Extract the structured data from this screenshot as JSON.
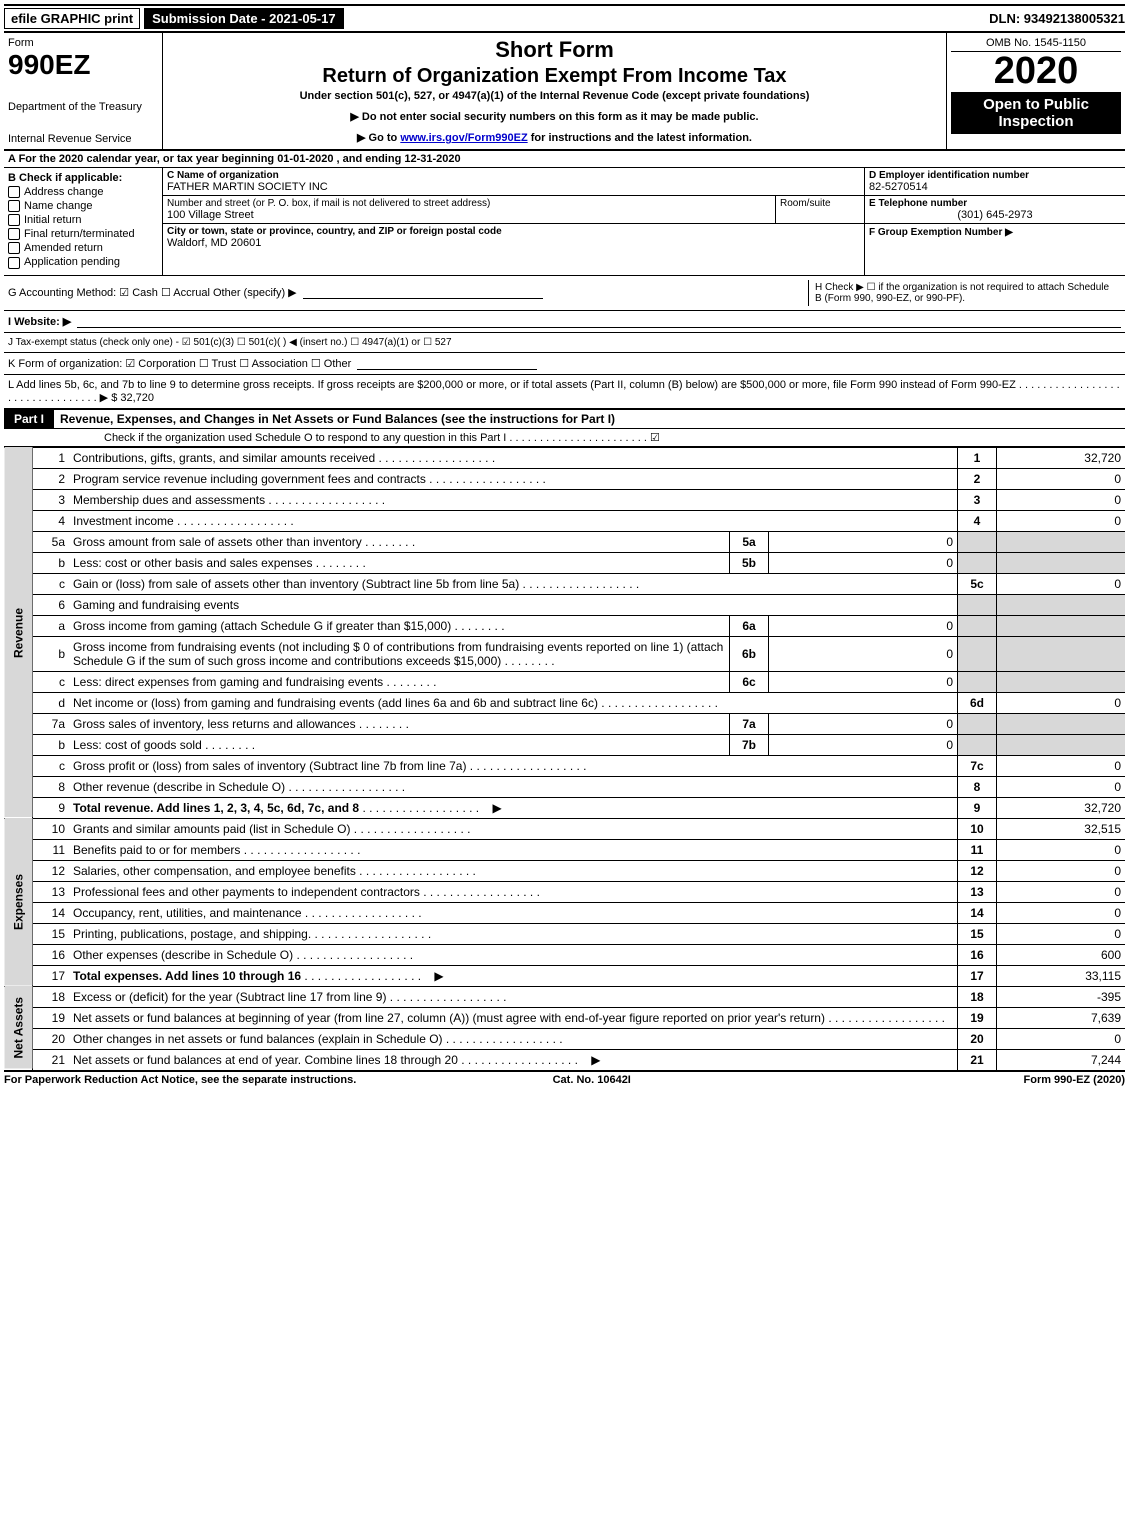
{
  "topbar": {
    "efile": "efile GRAPHIC print",
    "submission": "Submission Date - 2021-05-17",
    "dln": "DLN: 93492138005321"
  },
  "header": {
    "form_word": "Form",
    "form_num": "990EZ",
    "dept": "Department of the Treasury",
    "irs": "Internal Revenue Service",
    "title1": "Short Form",
    "title2": "Return of Organization Exempt From Income Tax",
    "subtitle": "Under section 501(c), 527, or 4947(a)(1) of the Internal Revenue Code (except private foundations)",
    "note1": "▶ Do not enter social security numbers on this form as it may be made public.",
    "note2_pre": "▶ Go to ",
    "note2_link": "www.irs.gov/Form990EZ",
    "note2_post": " for instructions and the latest information.",
    "omb": "OMB No. 1545-1150",
    "year": "2020",
    "open": "Open to Public Inspection"
  },
  "lineA": "A For the 2020 calendar year, or tax year beginning 01-01-2020 , and ending 12-31-2020",
  "boxB": {
    "title": "B  Check if applicable:",
    "items": [
      "Address change",
      "Name change",
      "Initial return",
      "Final return/terminated",
      "Amended return",
      "Application pending"
    ]
  },
  "boxC": {
    "name_label": "C Name of organization",
    "name": "FATHER MARTIN SOCIETY INC",
    "addr_label": "Number and street (or P. O. box, if mail is not delivered to street address)",
    "addr": "100 Village Street",
    "room_label": "Room/suite",
    "city_label": "City or town, state or province, country, and ZIP or foreign postal code",
    "city": "Waldorf, MD  20601"
  },
  "boxD": {
    "label": "D Employer identification number",
    "value": "82-5270514"
  },
  "boxE": {
    "label": "E Telephone number",
    "value": "(301) 645-2973"
  },
  "boxF": {
    "label": "F Group Exemption Number  ▶",
    "value": ""
  },
  "lineG": "G Accounting Method:  ☑ Cash  ☐ Accrual  Other (specify) ▶",
  "lineH": "H  Check ▶  ☐  if the organization is not required to attach Schedule B (Form 990, 990-EZ, or 990-PF).",
  "lineI": "I Website: ▶",
  "lineJ": "J Tax-exempt status (check only one) - ☑ 501(c)(3) ☐ 501(c)( ) ◀ (insert no.) ☐ 4947(a)(1) or ☐ 527",
  "lineK": "K Form of organization:  ☑ Corporation  ☐ Trust  ☐ Association  ☐ Other",
  "lineL": "L Add lines 5b, 6c, and 7b to line 9 to determine gross receipts. If gross receipts are $200,000 or more, or if total assets (Part II, column (B) below) are $500,000 or more, file Form 990 instead of Form 990-EZ . . . . . . . . . . . . . . . . . . . . . . . . . . . . . . . . ▶ $ 32,720",
  "part1": {
    "label": "Part I",
    "title": "Revenue, Expenses, and Changes in Net Assets or Fund Balances (see the instructions for Part I)",
    "check_line": "Check if the organization used Schedule O to respond to any question in this Part I . . . . . . . . . . . . . . . . . . . . . . . ☑"
  },
  "sections": {
    "revenue": "Revenue",
    "expenses": "Expenses",
    "netassets": "Net Assets"
  },
  "rows": [
    {
      "n": "1",
      "d": "Contributions, gifts, grants, and similar amounts received",
      "ln": "1",
      "amt": "32,720"
    },
    {
      "n": "2",
      "d": "Program service revenue including government fees and contracts",
      "ln": "2",
      "amt": "0"
    },
    {
      "n": "3",
      "d": "Membership dues and assessments",
      "ln": "3",
      "amt": "0"
    },
    {
      "n": "4",
      "d": "Investment income",
      "ln": "4",
      "amt": "0"
    },
    {
      "n": "5a",
      "d": "Gross amount from sale of assets other than inventory",
      "sub": "5a",
      "subamt": "0",
      "grey": true
    },
    {
      "n": "b",
      "d": "Less: cost or other basis and sales expenses",
      "sub": "5b",
      "subamt": "0",
      "grey": true
    },
    {
      "n": "c",
      "d": "Gain or (loss) from sale of assets other than inventory (Subtract line 5b from line 5a)",
      "ln": "5c",
      "amt": "0"
    },
    {
      "n": "6",
      "d": "Gaming and fundraising events",
      "grey": true
    },
    {
      "n": "a",
      "d": "Gross income from gaming (attach Schedule G if greater than $15,000)",
      "sub": "6a",
      "subamt": "0",
      "grey": true
    },
    {
      "n": "b",
      "d": "Gross income from fundraising events (not including $ 0              of contributions from fundraising events reported on line 1) (attach Schedule G if the sum of such gross income and contributions exceeds $15,000)",
      "sub": "6b",
      "subamt": "0",
      "grey": true
    },
    {
      "n": "c",
      "d": "Less: direct expenses from gaming and fundraising events",
      "sub": "6c",
      "subamt": "0",
      "grey": true
    },
    {
      "n": "d",
      "d": "Net income or (loss) from gaming and fundraising events (add lines 6a and 6b and subtract line 6c)",
      "ln": "6d",
      "amt": "0"
    },
    {
      "n": "7a",
      "d": "Gross sales of inventory, less returns and allowances",
      "sub": "7a",
      "subamt": "0",
      "grey": true
    },
    {
      "n": "b",
      "d": "Less: cost of goods sold",
      "sub": "7b",
      "subamt": "0",
      "grey": true
    },
    {
      "n": "c",
      "d": "Gross profit or (loss) from sales of inventory (Subtract line 7b from line 7a)",
      "ln": "7c",
      "amt": "0"
    },
    {
      "n": "8",
      "d": "Other revenue (describe in Schedule O)",
      "ln": "8",
      "amt": "0"
    },
    {
      "n": "9",
      "d": "Total revenue. Add lines 1, 2, 3, 4, 5c, 6d, 7c, and 8",
      "ln": "9",
      "amt": "32,720",
      "bold": true,
      "arrow": true
    }
  ],
  "exp_rows": [
    {
      "n": "10",
      "d": "Grants and similar amounts paid (list in Schedule O)",
      "ln": "10",
      "amt": "32,515"
    },
    {
      "n": "11",
      "d": "Benefits paid to or for members",
      "ln": "11",
      "amt": "0"
    },
    {
      "n": "12",
      "d": "Salaries, other compensation, and employee benefits",
      "ln": "12",
      "amt": "0"
    },
    {
      "n": "13",
      "d": "Professional fees and other payments to independent contractors",
      "ln": "13",
      "amt": "0"
    },
    {
      "n": "14",
      "d": "Occupancy, rent, utilities, and maintenance",
      "ln": "14",
      "amt": "0"
    },
    {
      "n": "15",
      "d": "Printing, publications, postage, and shipping.",
      "ln": "15",
      "amt": "0"
    },
    {
      "n": "16",
      "d": "Other expenses (describe in Schedule O)",
      "ln": "16",
      "amt": "600"
    },
    {
      "n": "17",
      "d": "Total expenses. Add lines 10 through 16",
      "ln": "17",
      "amt": "33,115",
      "bold": true,
      "arrow": true
    }
  ],
  "na_rows": [
    {
      "n": "18",
      "d": "Excess or (deficit) for the year (Subtract line 17 from line 9)",
      "ln": "18",
      "amt": "-395"
    },
    {
      "n": "19",
      "d": "Net assets or fund balances at beginning of year (from line 27, column (A)) (must agree with end-of-year figure reported on prior year's return)",
      "ln": "19",
      "amt": "7,639",
      "grey_amt_top": true
    },
    {
      "n": "20",
      "d": "Other changes in net assets or fund balances (explain in Schedule O)",
      "ln": "20",
      "amt": "0"
    },
    {
      "n": "21",
      "d": "Net assets or fund balances at end of year. Combine lines 18 through 20",
      "ln": "21",
      "amt": "7,244",
      "arrow": true
    }
  ],
  "footer": {
    "left": "For Paperwork Reduction Act Notice, see the separate instructions.",
    "center": "Cat. No. 10642I",
    "right": "Form 990-EZ (2020)"
  }
}
